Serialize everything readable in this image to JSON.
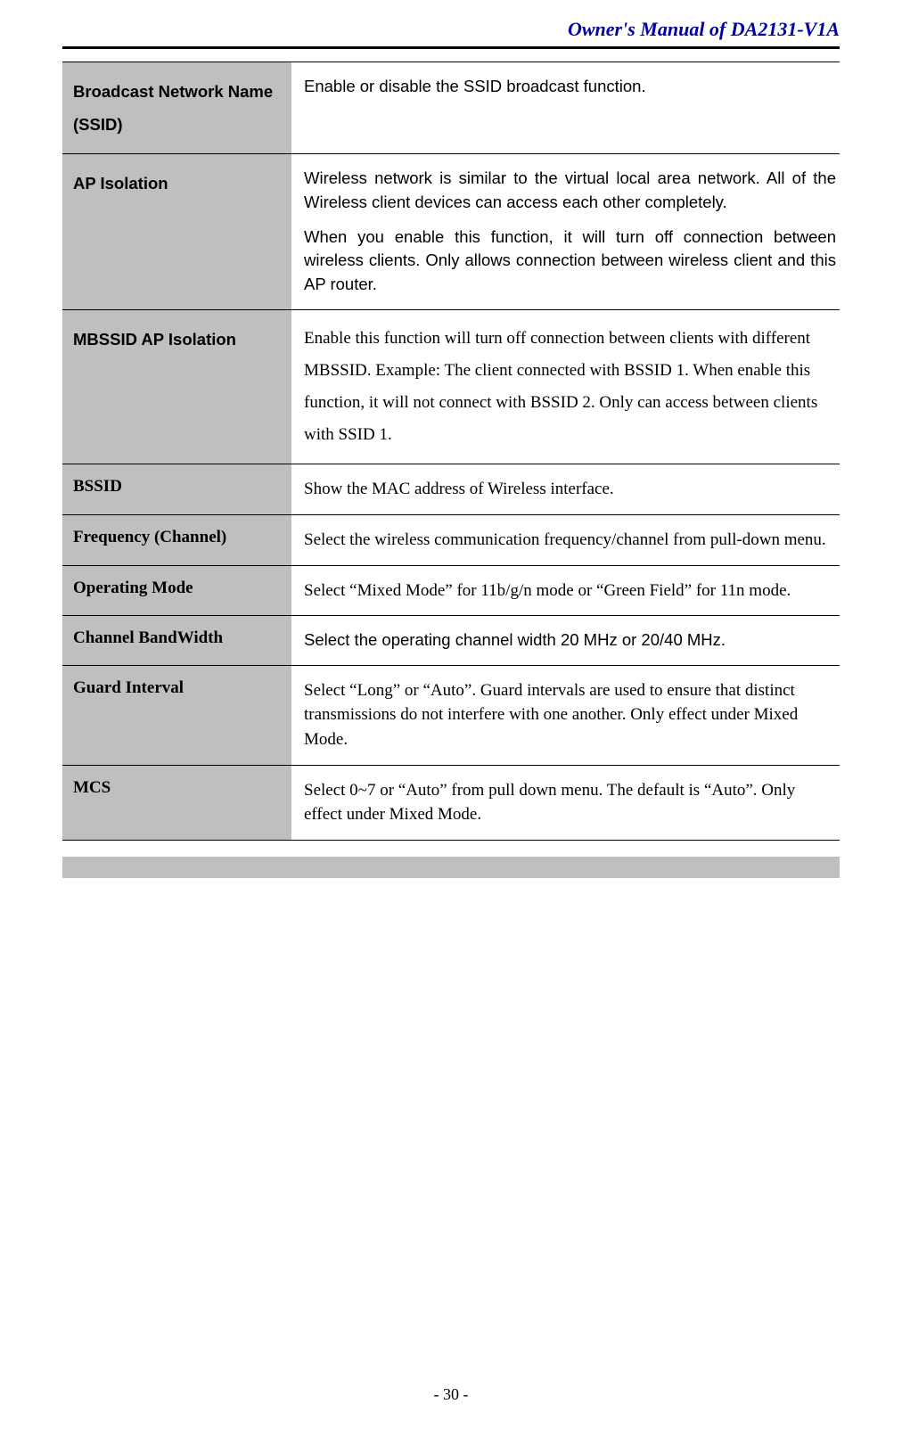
{
  "header": {
    "title": "Owner's Manual of DA2131-V1A"
  },
  "footer": {
    "page_number": "- 30 -"
  },
  "colors": {
    "header_text": "#0000a0",
    "rule": "#000000",
    "label_bg": "#bfbfbf",
    "page_bg": "#ffffff",
    "text": "#000000"
  },
  "table": {
    "rows": [
      {
        "label": "Broadcast Network Name (SSID)",
        "label_style": "sans",
        "paragraphs": [
          {
            "text": "Enable or disable the SSID broadcast function.",
            "style": "sans"
          }
        ]
      },
      {
        "label": "AP Isolation",
        "label_style": "sans",
        "paragraphs": [
          {
            "text": "Wireless network is similar to the virtual local area network. All of the Wireless client devices can access each other completely.",
            "style": "sans-justify"
          },
          {
            "text": "When you enable this function, it will turn off connection between wireless clients. Only allows connection between wireless client and this AP router.",
            "style": "sans-justify"
          }
        ]
      },
      {
        "label": "MBSSID AP Isolation",
        "label_style": "sans",
        "paragraphs": [
          {
            "text": "Enable this function will turn off connection between clients with different MBSSID. Example: The client connected with BSSID 1. When enable this function, it will not connect with BSSID 2. Only can access between clients with SSID 1.",
            "style": "serif"
          }
        ]
      },
      {
        "label": "BSSID",
        "label_style": "serif",
        "paragraphs": [
          {
            "text": "Show the MAC address of Wireless interface.",
            "style": "serif-tight"
          }
        ]
      },
      {
        "label": "Frequency (Channel)",
        "label_style": "serif",
        "paragraphs": [
          {
            "text": "Select the wireless communication frequency/channel from pull-down menu.",
            "style": "serif-tight"
          }
        ]
      },
      {
        "label": "Operating Mode",
        "label_style": "serif",
        "paragraphs": [
          {
            "text": "Select “Mixed Mode” for 11b/g/n mode or “Green Field” for 11n mode.",
            "style": "serif-tight"
          }
        ]
      },
      {
        "label": "Channel BandWidth",
        "label_style": "serif",
        "paragraphs": [
          {
            "text": "Select the operating channel width 20 MHz or 20/40 MHz.",
            "style": "sans"
          }
        ]
      },
      {
        "label": "Guard Interval",
        "label_style": "serif",
        "paragraphs": [
          {
            "text": "Select “Long” or “Auto”. Guard intervals are used to ensure that distinct transmissions do not interfere with one another. Only effect under Mixed Mode.",
            "style": "serif-tight"
          }
        ]
      },
      {
        "label": "MCS",
        "label_style": "serif",
        "paragraphs": [
          {
            "text": "Select 0~7 or “Auto” from pull down menu. The default is “Auto”. Only effect under Mixed Mode.",
            "style": "serif-tight"
          }
        ]
      }
    ]
  }
}
